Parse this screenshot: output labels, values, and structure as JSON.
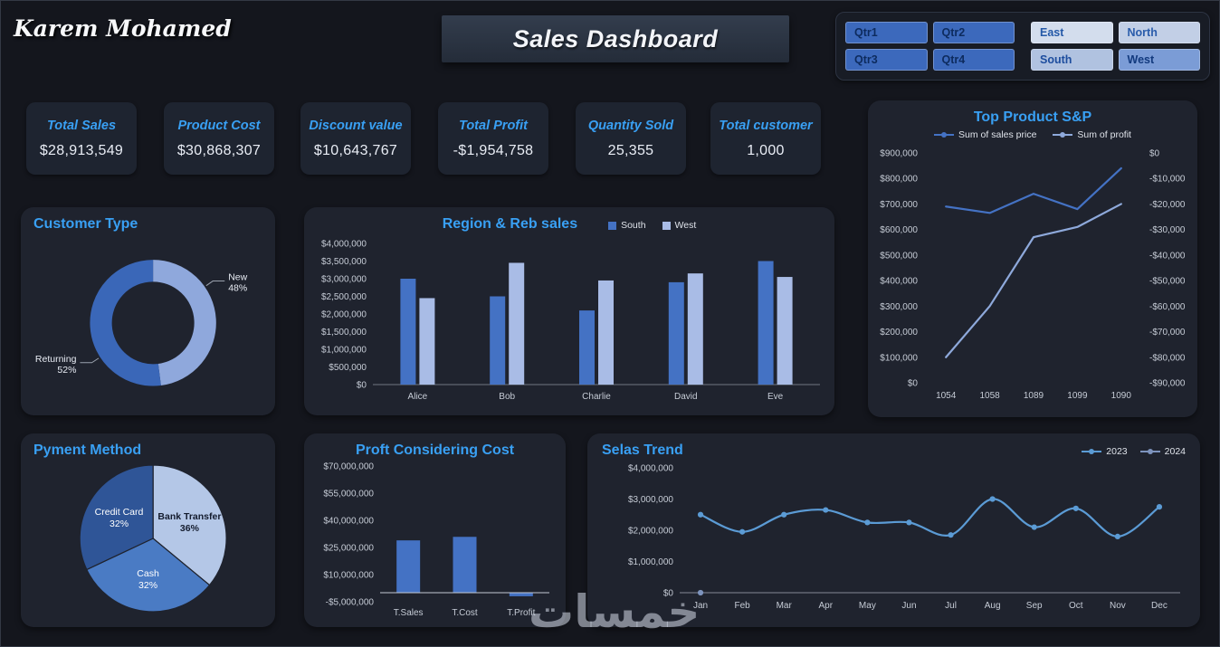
{
  "header": {
    "signature": "Karem Mohamed",
    "title": "Sales Dashboard"
  },
  "slicers": {
    "quarters": [
      "Qtr1",
      "Qtr2",
      "Qtr3",
      "Qtr4"
    ],
    "regions": [
      "East",
      "North",
      "South",
      "West"
    ]
  },
  "kpis": [
    {
      "title": "Total Sales",
      "value": "$28,913,549"
    },
    {
      "title": "Product Cost",
      "value": "$30,868,307"
    },
    {
      "title": "Discount value",
      "value": "$10,643,767"
    },
    {
      "title": "Total Profit",
      "value": "-$1,954,758"
    },
    {
      "title": "Quantity Sold",
      "value": "25,355"
    },
    {
      "title": "Total customer",
      "value": "1,000"
    }
  ],
  "watermark": {
    "text": "خمسات"
  },
  "colors": {
    "accent": "#39a0f4",
    "card_bg": "#1f232e",
    "background": "#14161d",
    "bar_blue": "#4472c4",
    "bar_light": "#a9bce6",
    "trend_blue": "#5b9bd5"
  },
  "chart_data": [
    {
      "id": "top-product",
      "type": "line-dual",
      "title": "Top Product  S&P",
      "x": [
        "1054",
        "1058",
        "1089",
        "1099",
        "1090"
      ],
      "series": [
        {
          "name": "Sum of sales price",
          "color": "#4472c4",
          "axis": "left",
          "values": [
            690000,
            665000,
            740000,
            680000,
            840000
          ]
        },
        {
          "name": "Sum of profit",
          "color": "#8ea9db",
          "axis": "right",
          "values": [
            -80000,
            -60000,
            -33000,
            -29000,
            -20000
          ]
        }
      ],
      "left_axis": {
        "min": 0,
        "max": 900000,
        "step": 100000
      },
      "right_axis": {
        "min": -90000,
        "max": 0,
        "step": 10000
      },
      "legend_position": "top"
    },
    {
      "id": "region-sales",
      "type": "bar-grouped",
      "title": "Region & Reb sales",
      "categories": [
        "Alice",
        "Bob",
        "Charlie",
        "David",
        "Eve"
      ],
      "series": [
        {
          "name": "South",
          "color": "#4472c4",
          "values": [
            3000000,
            2500000,
            2100000,
            2900000,
            3500000
          ]
        },
        {
          "name": "West",
          "color": "#a9bce6",
          "values": [
            2450000,
            3450000,
            2950000,
            3150000,
            3050000
          ]
        }
      ],
      "y_axis": {
        "min": 0,
        "max": 4000000,
        "step": 500000
      },
      "legend_position": "top-right"
    },
    {
      "id": "customer-type",
      "type": "donut",
      "title": "Customer Type",
      "slices": [
        {
          "label": "New",
          "pct": 48,
          "color": "#8fa8dc",
          "label_angle": 55
        },
        {
          "label": "Returning",
          "pct": 52,
          "color": "#3a67b8",
          "label_angle": 237
        }
      ]
    },
    {
      "id": "payment-method",
      "type": "pie",
      "title": "Pyment Method",
      "slices": [
        {
          "label": "Bank Transfer",
          "pct": 36,
          "color": "#b4c7e7",
          "text_color": "#141c2e",
          "bold": true
        },
        {
          "label": "Cash",
          "pct": 32,
          "color": "#4a7bc4",
          "text_color": "#ffffff"
        },
        {
          "label": "Credit Card",
          "pct": 32,
          "color": "#2f5597",
          "text_color": "#ffffff"
        }
      ]
    },
    {
      "id": "profit-cost",
      "type": "bar",
      "title": "Proft Considering Cost",
      "categories": [
        "T.Sales",
        "T.Cost",
        "T.Profit"
      ],
      "values": [
        28913549,
        30868307,
        -1954758
      ],
      "color": "#4472c4",
      "y_axis": {
        "min": -5000000,
        "max": 70000000,
        "step": 15000000
      }
    },
    {
      "id": "sales-trend",
      "type": "line",
      "title": "Selas Trend",
      "x": [
        "Jan",
        "Feb",
        "Mar",
        "Apr",
        "May",
        "Jun",
        "Jul",
        "Aug",
        "Sep",
        "Oct",
        "Nov",
        "Dec"
      ],
      "series": [
        {
          "name": "2023",
          "color": "#5b9bd5",
          "markers": true,
          "smooth": true,
          "values": [
            2500000,
            1950000,
            2500000,
            2650000,
            2250000,
            2250000,
            1850000,
            3000000,
            2100000,
            2700000,
            1800000,
            2750000
          ]
        },
        {
          "name": "2024",
          "color": "#7d93bd",
          "markers": true,
          "values": [
            0,
            null,
            null,
            null,
            null,
            null,
            null,
            null,
            null,
            null,
            null,
            null
          ]
        }
      ],
      "y_axis": {
        "min": 0,
        "max": 4000000,
        "step": 1000000
      },
      "axis_line": true,
      "legend_position": "top-right"
    }
  ]
}
